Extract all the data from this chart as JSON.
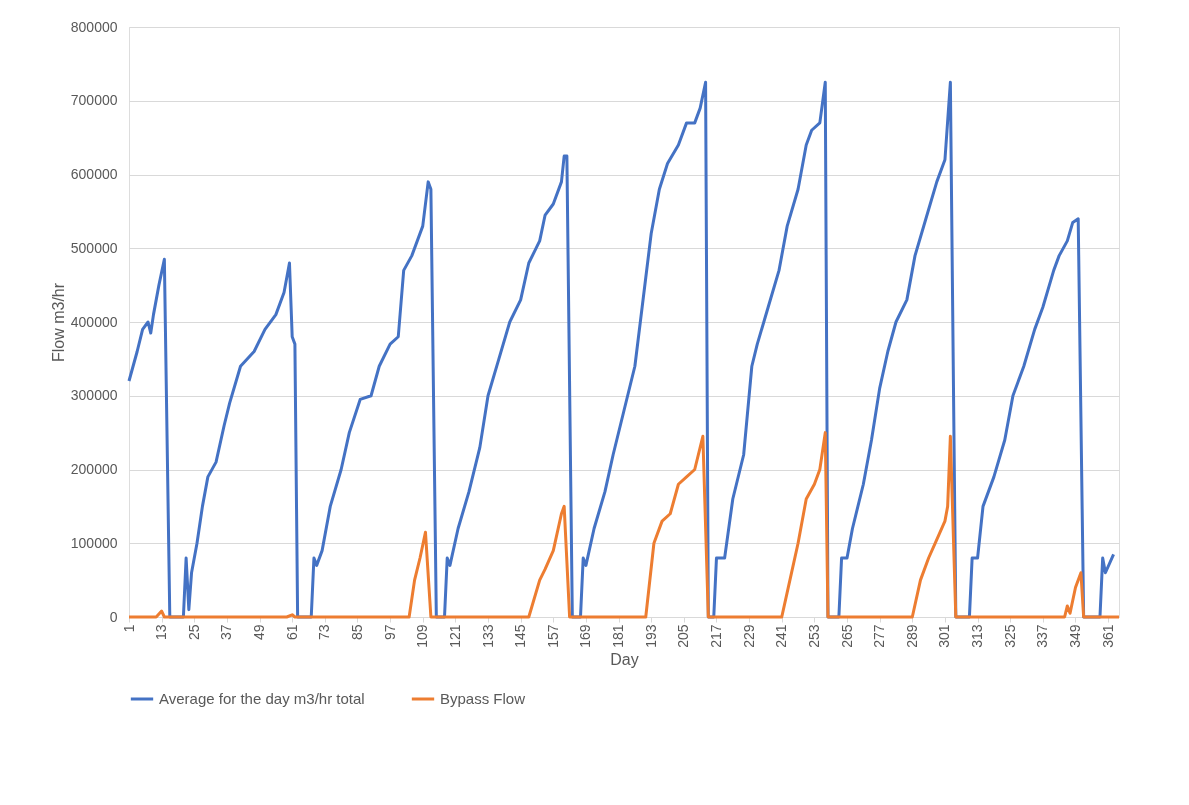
{
  "chart_data": {
    "type": "line",
    "xlabel": "Day",
    "ylabel": "Flow m3/hr",
    "xlim": [
      1,
      365
    ],
    "xticks": [
      1,
      13,
      25,
      37,
      49,
      61,
      73,
      85,
      97,
      109,
      121,
      133,
      145,
      157,
      169,
      181,
      193,
      205,
      217,
      229,
      241,
      253,
      265,
      277,
      289,
      301,
      313,
      325,
      337,
      349,
      361
    ],
    "ylim": [
      0,
      800000
    ],
    "yticks": [
      0,
      100000,
      200000,
      300000,
      400000,
      500000,
      600000,
      700000,
      800000
    ],
    "grid": "y",
    "legend": "bottom",
    "line_style": "solid",
    "marker": "none",
    "series": [
      {
        "name": "Average for the day m3/hr total",
        "color": "#4472c4",
        "x": [
          1,
          4,
          6,
          8,
          9,
          10,
          12,
          14,
          16,
          21,
          22,
          23,
          24,
          26,
          28,
          30,
          33,
          36,
          38,
          42,
          47,
          51,
          55,
          58,
          60,
          61,
          62,
          63,
          68,
          69,
          70,
          72,
          75,
          79,
          82,
          86,
          90,
          93,
          97,
          100,
          102,
          105,
          109,
          111,
          112,
          114,
          117,
          118,
          119,
          122,
          126,
          130,
          133,
          137,
          141,
          145,
          148,
          152,
          154,
          157,
          160,
          161,
          162,
          164,
          167,
          168,
          169,
          172,
          176,
          179,
          183,
          187,
          189,
          191,
          193,
          196,
          199,
          203,
          206,
          209,
          211,
          213,
          214,
          216,
          217,
          220,
          223,
          227,
          230,
          232,
          236,
          240,
          243,
          247,
          250,
          252,
          255,
          257,
          258,
          262,
          263,
          265,
          267,
          271,
          274,
          277,
          280,
          283,
          287,
          290,
          294,
          298,
          301,
          303,
          305,
          310,
          311,
          313,
          315,
          319,
          323,
          326,
          330,
          334,
          337,
          341,
          343,
          346,
          348,
          350,
          352,
          358,
          359,
          360,
          363
        ],
        "values": [
          320000,
          360000,
          390000,
          400000,
          385000,
          410000,
          450000,
          485000,
          0,
          0,
          80000,
          10000,
          60000,
          100000,
          150000,
          190000,
          210000,
          260000,
          290000,
          340000,
          360000,
          390000,
          410000,
          440000,
          480000,
          380000,
          370000,
          0,
          0,
          80000,
          70000,
          90000,
          150000,
          200000,
          250000,
          295000,
          300000,
          340000,
          370000,
          380000,
          470000,
          490000,
          530000,
          590000,
          580000,
          0,
          0,
          80000,
          70000,
          120000,
          170000,
          230000,
          300000,
          350000,
          400000,
          430000,
          480000,
          510000,
          545000,
          560000,
          590000,
          625000,
          625000,
          0,
          0,
          80000,
          70000,
          120000,
          170000,
          220000,
          280000,
          340000,
          400000,
          460000,
          520000,
          580000,
          615000,
          640000,
          670000,
          670000,
          690000,
          725000,
          0,
          0,
          80000,
          80000,
          160000,
          220000,
          340000,
          370000,
          420000,
          470000,
          530000,
          580000,
          640000,
          660000,
          670000,
          725000,
          0,
          0,
          80000,
          80000,
          120000,
          180000,
          240000,
          310000,
          360000,
          400000,
          430000,
          490000,
          540000,
          590000,
          620000,
          725000,
          0,
          0,
          80000,
          80000,
          150000,
          190000,
          240000,
          300000,
          340000,
          390000,
          420000,
          470000,
          490000,
          510000,
          535000,
          540000,
          0,
          0,
          80000,
          60000,
          85000
        ]
      },
      {
        "name": "Bypass Flow",
        "color": "#ed7d31",
        "x": [
          1,
          11,
          13,
          14,
          59,
          61,
          62,
          104,
          106,
          108,
          110,
          112,
          148,
          152,
          154,
          157,
          160,
          161,
          163,
          191,
          194,
          197,
          200,
          203,
          206,
          209,
          212,
          214,
          241,
          244,
          247,
          250,
          253,
          255,
          257,
          258,
          289,
          292,
          295,
          298,
          301,
          302,
          303,
          305,
          345,
          346,
          347,
          349,
          351,
          352,
          365
        ],
        "values": [
          0,
          0,
          8000,
          0,
          0,
          3000,
          0,
          0,
          50000,
          80000,
          115000,
          0,
          0,
          50000,
          65000,
          90000,
          140000,
          150000,
          0,
          0,
          100000,
          130000,
          140000,
          180000,
          190000,
          200000,
          245000,
          0,
          0,
          50000,
          100000,
          160000,
          180000,
          200000,
          250000,
          0,
          0,
          50000,
          80000,
          105000,
          130000,
          150000,
          245000,
          0,
          0,
          15000,
          5000,
          40000,
          60000,
          0,
          0
        ]
      }
    ]
  }
}
